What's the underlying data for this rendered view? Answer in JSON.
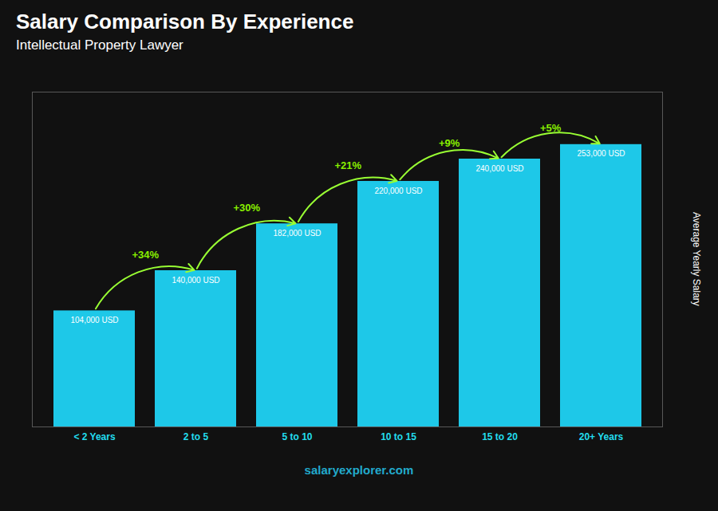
{
  "chart_data": {
    "type": "bar",
    "title": "Salary Comparison By Experience",
    "subtitle": "Intellectual Property Lawyer",
    "categories": [
      "< 2 Years",
      "2 to 5",
      "5 to 10",
      "10 to 15",
      "15 to 20",
      "20+ Years"
    ],
    "values": [
      104000,
      140000,
      182000,
      220000,
      240000,
      253000
    ],
    "value_labels": [
      "104,000 USD",
      "140,000 USD",
      "182,000 USD",
      "220,000 USD",
      "240,000 USD",
      "253,000 USD"
    ],
    "data_labels": true,
    "color": "#1ec8e8",
    "ylabel": "Average Yearly Salary",
    "ylim": [
      0,
      300000
    ],
    "tick_labels": "x",
    "grid": false,
    "annotations": [
      {
        "from": "< 2 Years",
        "to": "2 to 5",
        "text": "+34%"
      },
      {
        "from": "2 to 5",
        "to": "5 to 10",
        "text": "+30%"
      },
      {
        "from": "5 to 10",
        "to": "10 to 15",
        "text": "+21%"
      },
      {
        "from": "10 to 15",
        "to": "15 to 20",
        "text": "+9%"
      },
      {
        "from": "15 to 20",
        "to": "20+ Years",
        "text": "+5%"
      }
    ],
    "caption": "salaryexplorer.com"
  }
}
